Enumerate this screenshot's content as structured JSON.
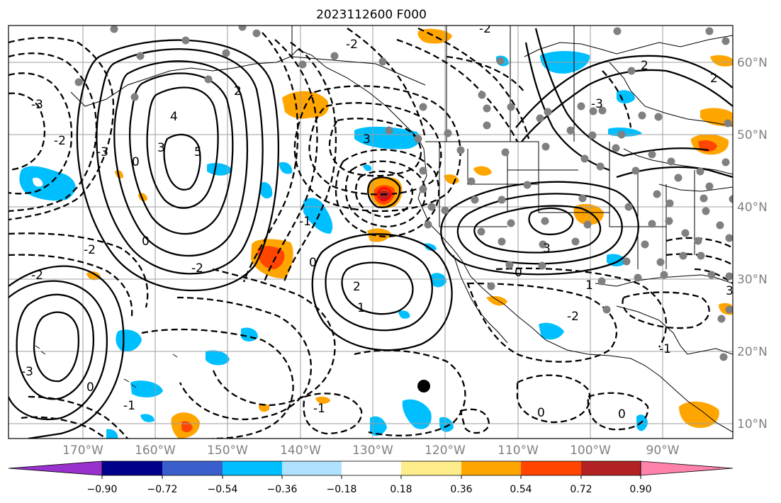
{
  "title": "2023112600 F000",
  "map": {
    "lon_labels": [
      "170°W",
      "160°W",
      "150°W",
      "140°W",
      "130°W",
      "120°W",
      "110°W",
      "100°W",
      "90°W"
    ],
    "lat_labels": [
      "60°N",
      "50°N",
      "40°N",
      "30°N",
      "20°N",
      "10°N"
    ],
    "contour_labels": [
      "-2",
      "-3",
      "-2",
      "0",
      "4",
      "5",
      "3",
      "-3",
      "0",
      "2",
      "3",
      "-2",
      "-3",
      "-2",
      "-1",
      "0",
      "2",
      "1",
      "3",
      "0",
      "1",
      "-2",
      "-3",
      "0",
      "-1",
      "-2",
      "-1",
      "0",
      "0",
      "2",
      "-2",
      "-1",
      "2",
      "3"
    ]
  },
  "colorbar": {
    "colors": [
      "#9932cc",
      "#00008b",
      "#3a5fcd",
      "#00bfff",
      "#b0e2ff",
      "#ffffff",
      "#ffec8b",
      "#ffa500",
      "#ff4500",
      "#b22222",
      "#ff82ab"
    ],
    "tick_labels": [
      "−0.90",
      "−0.72",
      "−0.54",
      "−0.36",
      "−0.18",
      "0.18",
      "0.36",
      "0.54",
      "0.72",
      "0.90"
    ]
  }
}
